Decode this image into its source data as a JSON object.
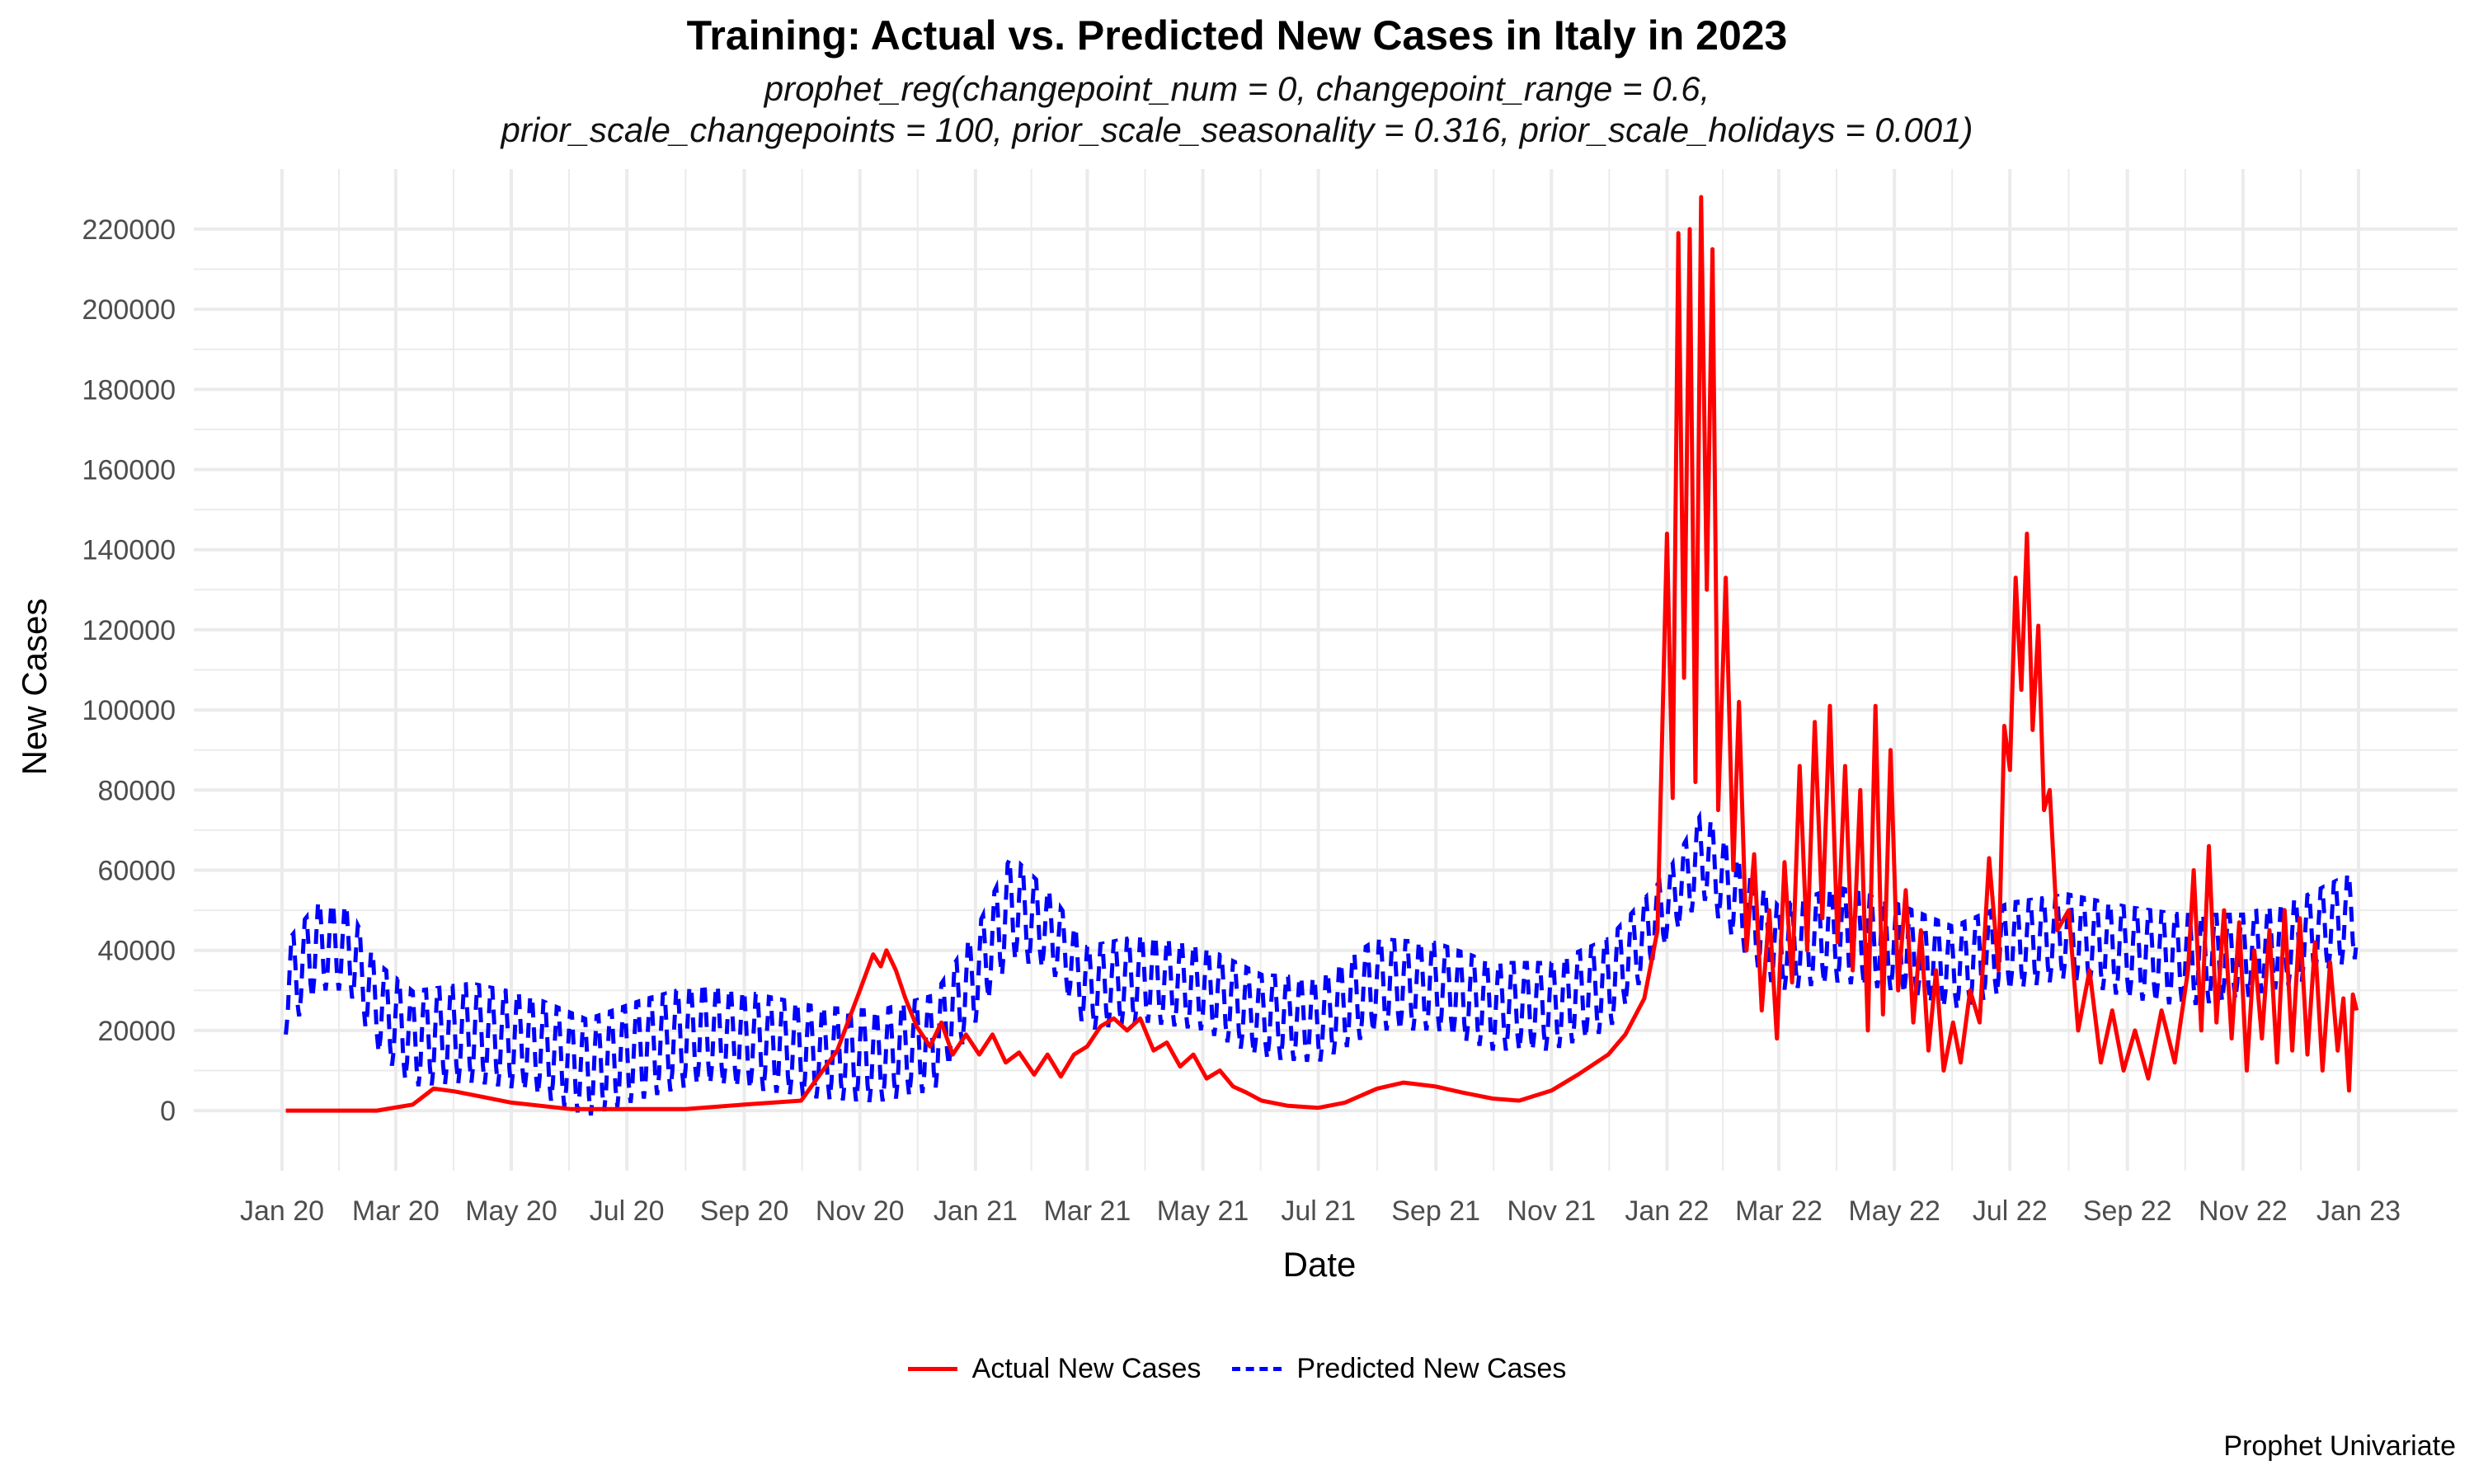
{
  "title": "Training: Actual vs. Predicted New Cases in Italy in 2023",
  "subtitle_line1": "prophet_reg(changepoint_num = 0, changepoint_range = 0.6,",
  "subtitle_line2": "prior_scale_changepoints = 100, prior_scale_seasonality = 0.316, prior_scale_holidays = 0.001)",
  "caption": "Prophet Univariate",
  "colors": {
    "actual": "#ff0000",
    "predicted": "#0000ff",
    "grid": "#ebebeb"
  },
  "chart_data": {
    "type": "line",
    "xlabel": "Date",
    "ylabel": "New Cases",
    "x_range": [
      "2020-01-01",
      "2023-01-01"
    ],
    "ylim": [
      -15000,
      235000
    ],
    "y_ticks": [
      0,
      20000,
      40000,
      60000,
      80000,
      100000,
      120000,
      140000,
      160000,
      180000,
      200000,
      220000
    ],
    "x_ticks": [
      {
        "date": "2020-01-01",
        "label": "Jan 20"
      },
      {
        "date": "2020-03-01",
        "label": "Mar 20"
      },
      {
        "date": "2020-05-01",
        "label": "May 20"
      },
      {
        "date": "2020-07-01",
        "label": "Jul 20"
      },
      {
        "date": "2020-09-01",
        "label": "Sep 20"
      },
      {
        "date": "2020-11-01",
        "label": "Nov 20"
      },
      {
        "date": "2021-01-01",
        "label": "Jan 21"
      },
      {
        "date": "2021-03-01",
        "label": "Mar 21"
      },
      {
        "date": "2021-05-01",
        "label": "May 21"
      },
      {
        "date": "2021-07-01",
        "label": "Jul 21"
      },
      {
        "date": "2021-09-01",
        "label": "Sep 21"
      },
      {
        "date": "2021-11-01",
        "label": "Nov 21"
      },
      {
        "date": "2022-01-01",
        "label": "Jan 22"
      },
      {
        "date": "2022-03-01",
        "label": "Mar 22"
      },
      {
        "date": "2022-05-01",
        "label": "May 22"
      },
      {
        "date": "2022-07-01",
        "label": "Jul 22"
      },
      {
        "date": "2022-09-01",
        "label": "Sep 22"
      },
      {
        "date": "2022-11-01",
        "label": "Nov 22"
      },
      {
        "date": "2023-01-01",
        "label": "Jan 23"
      }
    ],
    "grid": true,
    "legend_position": "bottom",
    "series": [
      {
        "name": "Actual New Cases",
        "line_style": "solid",
        "points": [
          [
            "2020-01-03",
            0
          ],
          [
            "2020-02-20",
            0
          ],
          [
            "2020-03-10",
            1500
          ],
          [
            "2020-03-21",
            5500
          ],
          [
            "2020-04-01",
            4800
          ],
          [
            "2020-04-15",
            3500
          ],
          [
            "2020-05-01",
            2000
          ],
          [
            "2020-06-01",
            400
          ],
          [
            "2020-08-01",
            400
          ],
          [
            "2020-09-01",
            1500
          ],
          [
            "2020-10-01",
            2500
          ],
          [
            "2020-10-20",
            15000
          ],
          [
            "2020-11-01",
            30000
          ],
          [
            "2020-11-08",
            39000
          ],
          [
            "2020-11-12",
            36000
          ],
          [
            "2020-11-15",
            40000
          ],
          [
            "2020-11-20",
            35000
          ],
          [
            "2020-11-25",
            28000
          ],
          [
            "2020-12-01",
            21000
          ],
          [
            "2020-12-08",
            16000
          ],
          [
            "2020-12-14",
            22000
          ],
          [
            "2020-12-20",
            14000
          ],
          [
            "2020-12-27",
            19000
          ],
          [
            "2021-01-03",
            14000
          ],
          [
            "2021-01-10",
            19000
          ],
          [
            "2021-01-17",
            12000
          ],
          [
            "2021-01-24",
            14500
          ],
          [
            "2021-02-01",
            9000
          ],
          [
            "2021-02-08",
            14000
          ],
          [
            "2021-02-15",
            8500
          ],
          [
            "2021-02-22",
            14000
          ],
          [
            "2021-03-01",
            16000
          ],
          [
            "2021-03-08",
            21000
          ],
          [
            "2021-03-15",
            23000
          ],
          [
            "2021-03-22",
            20000
          ],
          [
            "2021-03-29",
            23000
          ],
          [
            "2021-04-05",
            15000
          ],
          [
            "2021-04-12",
            17000
          ],
          [
            "2021-04-19",
            11000
          ],
          [
            "2021-04-26",
            14000
          ],
          [
            "2021-05-03",
            8000
          ],
          [
            "2021-05-10",
            10000
          ],
          [
            "2021-05-17",
            6000
          ],
          [
            "2021-05-24",
            4500
          ],
          [
            "2021-06-01",
            2500
          ],
          [
            "2021-06-15",
            1200
          ],
          [
            "2021-07-01",
            700
          ],
          [
            "2021-07-15",
            2000
          ],
          [
            "2021-08-01",
            5500
          ],
          [
            "2021-08-15",
            7000
          ],
          [
            "2021-09-01",
            6000
          ],
          [
            "2021-09-15",
            4500
          ],
          [
            "2021-10-01",
            3000
          ],
          [
            "2021-10-15",
            2500
          ],
          [
            "2021-11-01",
            5000
          ],
          [
            "2021-11-15",
            9000
          ],
          [
            "2021-12-01",
            14000
          ],
          [
            "2021-12-10",
            19000
          ],
          [
            "2021-12-20",
            28000
          ],
          [
            "2021-12-27",
            45000
          ],
          [
            "2022-01-01",
            144000
          ],
          [
            "2022-01-04",
            78000
          ],
          [
            "2022-01-07",
            219000
          ],
          [
            "2022-01-10",
            108000
          ],
          [
            "2022-01-13",
            220000
          ],
          [
            "2022-01-16",
            82000
          ],
          [
            "2022-01-19",
            228000
          ],
          [
            "2022-01-22",
            130000
          ],
          [
            "2022-01-25",
            215000
          ],
          [
            "2022-01-28",
            75000
          ],
          [
            "2022-02-01",
            133000
          ],
          [
            "2022-02-05",
            60000
          ],
          [
            "2022-02-08",
            102000
          ],
          [
            "2022-02-12",
            40000
          ],
          [
            "2022-02-16",
            64000
          ],
          [
            "2022-02-20",
            25000
          ],
          [
            "2022-02-24",
            50000
          ],
          [
            "2022-02-28",
            18000
          ],
          [
            "2022-03-04",
            62000
          ],
          [
            "2022-03-08",
            32000
          ],
          [
            "2022-03-12",
            86000
          ],
          [
            "2022-03-16",
            40000
          ],
          [
            "2022-03-20",
            97000
          ],
          [
            "2022-03-24",
            48000
          ],
          [
            "2022-03-28",
            101000
          ],
          [
            "2022-04-01",
            42000
          ],
          [
            "2022-04-05",
            86000
          ],
          [
            "2022-04-09",
            35000
          ],
          [
            "2022-04-13",
            80000
          ],
          [
            "2022-04-17",
            20000
          ],
          [
            "2022-04-21",
            101000
          ],
          [
            "2022-04-25",
            24000
          ],
          [
            "2022-04-29",
            90000
          ],
          [
            "2022-05-03",
            30000
          ],
          [
            "2022-05-07",
            55000
          ],
          [
            "2022-05-11",
            22000
          ],
          [
            "2022-05-15",
            45000
          ],
          [
            "2022-05-19",
            15000
          ],
          [
            "2022-05-23",
            35000
          ],
          [
            "2022-05-27",
            10000
          ],
          [
            "2022-06-01",
            22000
          ],
          [
            "2022-06-05",
            12000
          ],
          [
            "2022-06-10",
            30000
          ],
          [
            "2022-06-15",
            22000
          ],
          [
            "2022-06-20",
            63000
          ],
          [
            "2022-06-25",
            35000
          ],
          [
            "2022-06-28",
            96000
          ],
          [
            "2022-07-01",
            85000
          ],
          [
            "2022-07-04",
            133000
          ],
          [
            "2022-07-07",
            105000
          ],
          [
            "2022-07-10",
            144000
          ],
          [
            "2022-07-13",
            95000
          ],
          [
            "2022-07-16",
            121000
          ],
          [
            "2022-07-19",
            75000
          ],
          [
            "2022-07-22",
            80000
          ],
          [
            "2022-07-26",
            45000
          ],
          [
            "2022-08-01",
            50000
          ],
          [
            "2022-08-06",
            20000
          ],
          [
            "2022-08-12",
            35000
          ],
          [
            "2022-08-18",
            12000
          ],
          [
            "2022-08-24",
            25000
          ],
          [
            "2022-08-30",
            10000
          ],
          [
            "2022-09-05",
            20000
          ],
          [
            "2022-09-12",
            8000
          ],
          [
            "2022-09-19",
            25000
          ],
          [
            "2022-09-26",
            12000
          ],
          [
            "2022-10-03",
            35000
          ],
          [
            "2022-10-06",
            60000
          ],
          [
            "2022-10-10",
            20000
          ],
          [
            "2022-10-14",
            66000
          ],
          [
            "2022-10-18",
            22000
          ],
          [
            "2022-10-22",
            50000
          ],
          [
            "2022-10-26",
            18000
          ],
          [
            "2022-10-30",
            47000
          ],
          [
            "2022-11-03",
            10000
          ],
          [
            "2022-11-07",
            40000
          ],
          [
            "2022-11-11",
            18000
          ],
          [
            "2022-11-15",
            45000
          ],
          [
            "2022-11-19",
            12000
          ],
          [
            "2022-11-23",
            50000
          ],
          [
            "2022-11-27",
            15000
          ],
          [
            "2022-12-01",
            48000
          ],
          [
            "2022-12-05",
            14000
          ],
          [
            "2022-12-09",
            42000
          ],
          [
            "2022-12-13",
            10000
          ],
          [
            "2022-12-17",
            37000
          ],
          [
            "2022-12-21",
            15000
          ],
          [
            "2022-12-24",
            28000
          ],
          [
            "2022-12-27",
            5000
          ],
          [
            "2022-12-29",
            29000
          ],
          [
            "2022-12-31",
            25000
          ]
        ]
      },
      {
        "name": "Predicted New Cases",
        "line_style": "dashed",
        "envelope": {
          "period_days": 7,
          "low": [
            [
              "2020-01-03",
              19000
            ],
            [
              "2020-01-20",
              30000
            ],
            [
              "2020-02-05",
              30000
            ],
            [
              "2020-02-20",
              15000
            ],
            [
              "2020-03-10",
              6000
            ],
            [
              "2020-04-10",
              7000
            ],
            [
              "2020-05-10",
              5000
            ],
            [
              "2020-06-10",
              -1500
            ],
            [
              "2020-07-10",
              3000
            ],
            [
              "2020-08-10",
              7000
            ],
            [
              "2020-09-10",
              5000
            ],
            [
              "2020-10-10",
              3000
            ],
            [
              "2020-11-10",
              2000
            ],
            [
              "2020-12-10",
              5000
            ],
            [
              "2021-01-01",
              22000
            ],
            [
              "2021-01-20",
              38000
            ],
            [
              "2021-02-10",
              35000
            ],
            [
              "2021-03-01",
              20000
            ],
            [
              "2021-04-01",
              22000
            ],
            [
              "2021-05-01",
              20000
            ],
            [
              "2021-06-01",
              13000
            ],
            [
              "2021-07-01",
              12000
            ],
            [
              "2021-08-01",
              20000
            ],
            [
              "2021-09-01",
              20000
            ],
            [
              "2021-10-01",
              15000
            ],
            [
              "2021-11-01",
              15000
            ],
            [
              "2021-12-01",
              20000
            ],
            [
              "2022-01-01",
              42000
            ],
            [
              "2022-01-20",
              53000
            ],
            [
              "2022-02-10",
              40000
            ],
            [
              "2022-03-01",
              30000
            ],
            [
              "2022-04-01",
              32000
            ],
            [
              "2022-05-01",
              30000
            ],
            [
              "2022-06-01",
              25000
            ],
            [
              "2022-07-01",
              30000
            ],
            [
              "2022-08-01",
              33000
            ],
            [
              "2022-09-01",
              28000
            ],
            [
              "2022-10-01",
              26000
            ],
            [
              "2022-11-01",
              28000
            ],
            [
              "2022-12-01",
              32000
            ],
            [
              "2022-12-31",
              38000
            ]
          ],
          "high": [
            [
              "2020-01-03",
              43000
            ],
            [
              "2020-01-20",
              53000
            ],
            [
              "2020-02-05",
              52000
            ],
            [
              "2020-02-20",
              38000
            ],
            [
              "2020-03-10",
              31000
            ],
            [
              "2020-04-10",
              33000
            ],
            [
              "2020-05-10",
              30000
            ],
            [
              "2020-06-10",
              24000
            ],
            [
              "2020-07-10",
              29000
            ],
            [
              "2020-08-10",
              33000
            ],
            [
              "2020-09-10",
              30000
            ],
            [
              "2020-10-10",
              27000
            ],
            [
              "2020-11-10",
              26000
            ],
            [
              "2020-12-10",
              30000
            ],
            [
              "2021-01-01",
              46000
            ],
            [
              "2021-01-20",
              65000
            ],
            [
              "2021-02-10",
              55000
            ],
            [
              "2021-03-01",
              42000
            ],
            [
              "2021-04-01",
              45000
            ],
            [
              "2021-05-01",
              42000
            ],
            [
              "2021-06-01",
              35000
            ],
            [
              "2021-07-01",
              34000
            ],
            [
              "2021-08-01",
              44000
            ],
            [
              "2021-09-01",
              43000
            ],
            [
              "2021-10-01",
              38000
            ],
            [
              "2021-11-01",
              38000
            ],
            [
              "2021-12-01",
              44000
            ],
            [
              "2022-01-01",
              60000
            ],
            [
              "2022-01-20",
              76000
            ],
            [
              "2022-02-10",
              62000
            ],
            [
              "2022-03-01",
              52000
            ],
            [
              "2022-04-01",
              57000
            ],
            [
              "2022-05-01",
              53000
            ],
            [
              "2022-06-01",
              47000
            ],
            [
              "2022-07-01",
              53000
            ],
            [
              "2022-08-01",
              55000
            ],
            [
              "2022-09-01",
              52000
            ],
            [
              "2022-10-01",
              50000
            ],
            [
              "2022-11-01",
              50000
            ],
            [
              "2022-12-01",
              54000
            ],
            [
              "2022-12-31",
              61000
            ]
          ]
        }
      }
    ]
  }
}
